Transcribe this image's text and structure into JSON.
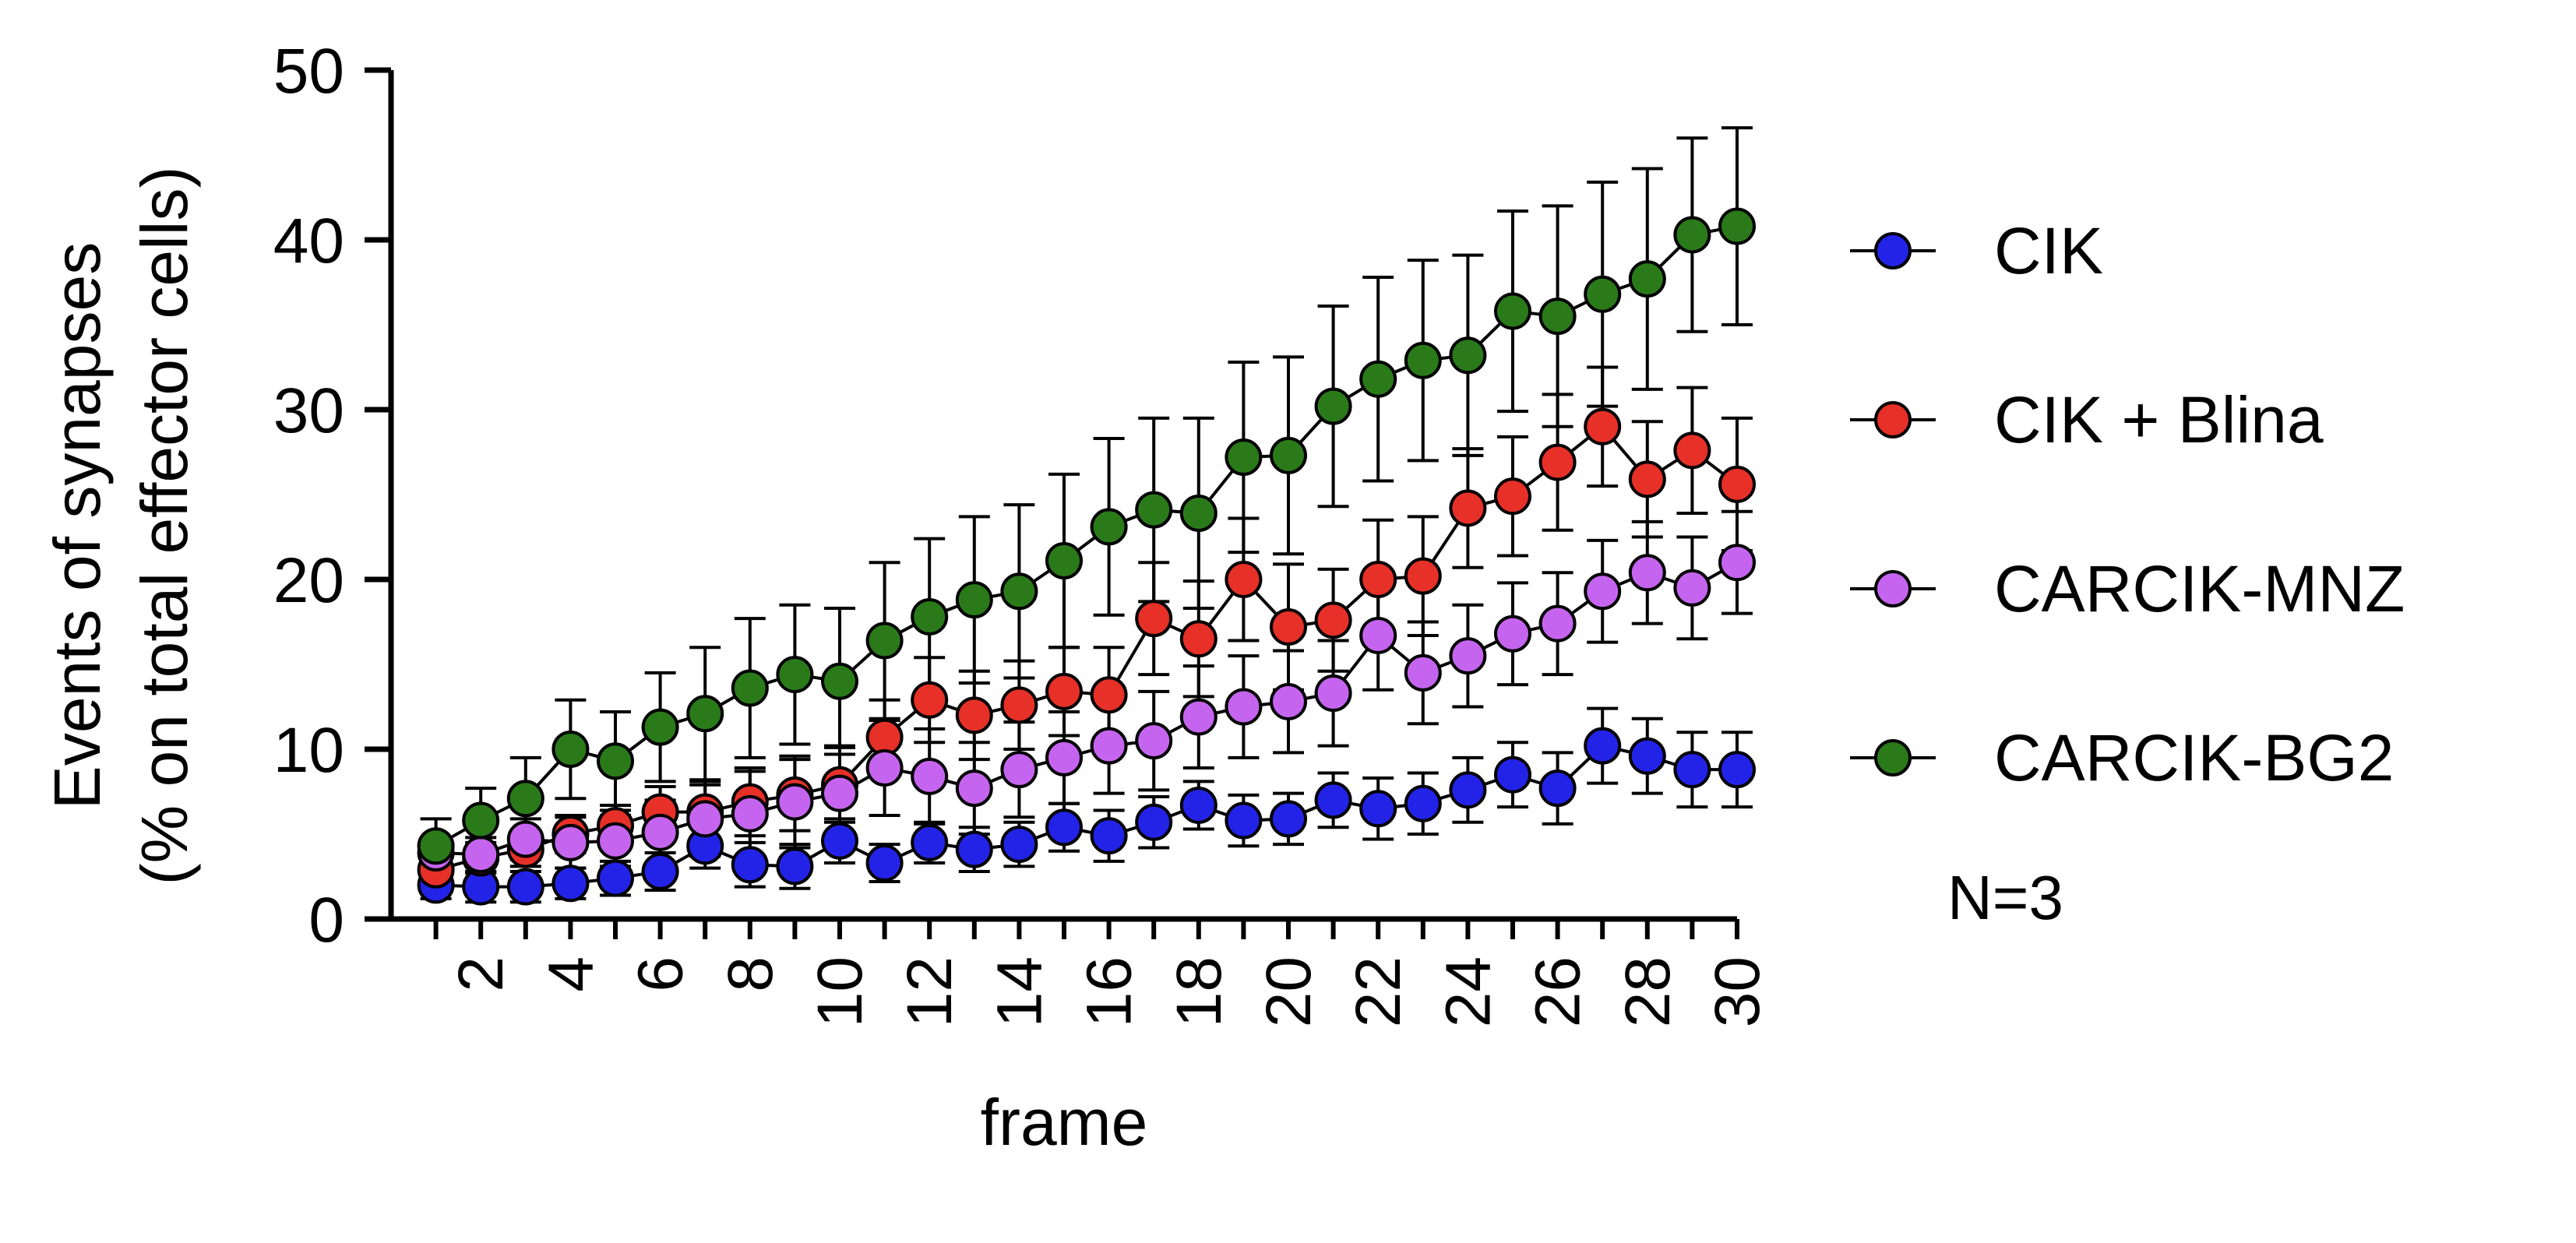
{
  "chart_data": {
    "type": "line",
    "xlabel": "frame",
    "ylabel_line1": "Events of synapses",
    "ylabel_line2": "(% on total effector cells)",
    "xlim": [
      0,
      30
    ],
    "ylim": [
      0,
      50
    ],
    "y_ticks": [
      0,
      10,
      20,
      30,
      40,
      50
    ],
    "x_ticks": [
      2,
      4,
      6,
      8,
      10,
      12,
      14,
      16,
      18,
      20,
      22,
      24,
      26,
      28,
      30
    ],
    "x": [
      1,
      2,
      3,
      4,
      5,
      6,
      7,
      8,
      9,
      10,
      11,
      12,
      13,
      14,
      15,
      16,
      17,
      18,
      19,
      20,
      21,
      22,
      23,
      24,
      25,
      26,
      27,
      28,
      29,
      30
    ],
    "grid": false,
    "legend_position": "right",
    "annotation": "N=3",
    "series": [
      {
        "name": "CIK",
        "color": "#2323e8",
        "values": [
          2.0,
          1.9,
          1.9,
          2.1,
          2.4,
          2.8,
          4.3,
          3.2,
          3.1,
          4.6,
          3.3,
          4.5,
          4.1,
          4.4,
          5.4,
          4.9,
          5.7,
          6.7,
          5.8,
          5.9,
          7.0,
          6.5,
          6.8,
          7.6,
          8.5,
          7.7,
          10.2,
          9.6,
          8.8,
          8.8
        ],
        "errors": [
          0.8,
          0.9,
          0.9,
          0.9,
          1.0,
          1.1,
          1.3,
          1.3,
          1.3,
          1.3,
          1.1,
          1.2,
          1.3,
          1.3,
          1.4,
          1.5,
          1.5,
          1.4,
          1.5,
          1.5,
          1.6,
          1.8,
          1.8,
          1.9,
          1.9,
          2.1,
          2.2,
          2.2,
          2.2,
          2.2
        ]
      },
      {
        "name": "CIK + Blina",
        "color": "#e63028",
        "values": [
          2.9,
          3.6,
          4.1,
          5.0,
          5.5,
          6.3,
          6.3,
          6.9,
          7.3,
          7.9,
          10.7,
          12.9,
          12.0,
          12.6,
          13.4,
          13.2,
          17.7,
          16.5,
          20.0,
          17.2,
          17.6,
          20.0,
          20.2,
          24.2,
          24.9,
          26.9,
          29.0,
          25.9,
          27.6,
          25.6
        ],
        "errors": [
          0.7,
          0.9,
          1.0,
          1.1,
          1.2,
          1.5,
          1.6,
          2.0,
          2.1,
          2.2,
          2.2,
          2.5,
          2.6,
          2.6,
          2.6,
          2.8,
          3.3,
          3.4,
          3.6,
          3.7,
          3.0,
          3.5,
          3.5,
          3.5,
          3.5,
          4.0,
          3.5,
          3.4,
          3.7,
          3.9
        ]
      },
      {
        "name": "CARCIK-MNZ",
        "color": "#c565ef",
        "values": [
          3.9,
          3.8,
          4.7,
          4.5,
          4.6,
          5.1,
          5.9,
          6.2,
          6.9,
          7.4,
          8.9,
          8.4,
          7.7,
          8.8,
          9.5,
          10.2,
          10.5,
          11.9,
          12.5,
          12.8,
          13.3,
          16.7,
          14.5,
          15.5,
          16.8,
          17.4,
          19.3,
          20.4,
          19.5,
          21.0
        ],
        "errors": [
          0.8,
          1.0,
          1.2,
          1.5,
          1.5,
          1.9,
          2.2,
          2.5,
          2.7,
          2.8,
          2.8,
          2.8,
          2.7,
          2.8,
          2.7,
          2.8,
          2.9,
          3.0,
          3.0,
          3.0,
          3.1,
          3.2,
          3.0,
          3.0,
          3.0,
          3.0,
          3.0,
          3.0,
          3.0,
          3.0
        ]
      },
      {
        "name": "CARCIK-BG2",
        "color": "#2a7a1a",
        "values": [
          4.3,
          5.8,
          7.1,
          10.0,
          9.3,
          11.3,
          12.1,
          13.6,
          14.4,
          14.0,
          16.4,
          17.8,
          18.8,
          19.3,
          21.1,
          23.1,
          24.1,
          23.9,
          27.2,
          27.3,
          30.2,
          31.8,
          32.9,
          33.2,
          35.8,
          35.5,
          36.8,
          37.7,
          40.3,
          40.8
        ],
        "errors": [
          1.6,
          1.9,
          2.4,
          2.9,
          2.9,
          3.2,
          3.9,
          4.1,
          4.1,
          4.3,
          4.6,
          4.6,
          4.9,
          5.1,
          5.1,
          5.2,
          5.4,
          5.6,
          5.6,
          5.8,
          5.9,
          6.0,
          5.9,
          5.9,
          5.9,
          6.5,
          6.6,
          6.5,
          5.7,
          5.8
        ]
      }
    ]
  }
}
